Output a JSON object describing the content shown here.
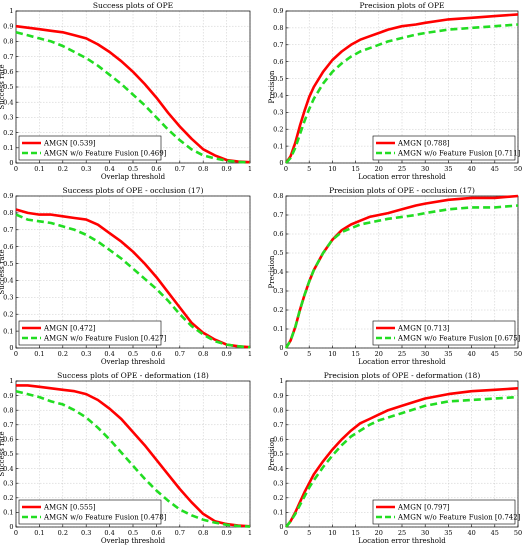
{
  "chart_data": [
    {
      "type": "line",
      "title": "Success plots of OPE",
      "xlabel": "Overlap threshold",
      "ylabel": "Success rate",
      "xlim": [
        0,
        1
      ],
      "ylim": [
        0,
        1
      ],
      "xticks": [
        "0",
        "0.1",
        "0.2",
        "0.3",
        "0.4",
        "0.5",
        "0.6",
        "0.7",
        "0.8",
        "0.9",
        "1"
      ],
      "yticks": [
        "0",
        "0.1",
        "0.2",
        "0.3",
        "0.4",
        "0.5",
        "0.6",
        "0.7",
        "0.8",
        "0.9",
        "1"
      ],
      "grid": true,
      "legend": "bottom-left",
      "series": [
        {
          "name": "AMGN [0.539]",
          "color": "#ff0000",
          "style": "solid",
          "x": [
            0,
            0.05,
            0.1,
            0.15,
            0.2,
            0.25,
            0.3,
            0.35,
            0.4,
            0.45,
            0.5,
            0.55,
            0.6,
            0.65,
            0.7,
            0.75,
            0.8,
            0.85,
            0.9,
            0.95,
            1
          ],
          "y": [
            0.9,
            0.89,
            0.88,
            0.87,
            0.86,
            0.84,
            0.82,
            0.78,
            0.73,
            0.67,
            0.6,
            0.52,
            0.43,
            0.33,
            0.24,
            0.16,
            0.09,
            0.05,
            0.02,
            0.01,
            0.005
          ]
        },
        {
          "name": "AMGN w/o Feature Fusion [0.469]",
          "color": "#22dd22",
          "style": "dashed",
          "x": [
            0,
            0.05,
            0.1,
            0.15,
            0.2,
            0.25,
            0.3,
            0.35,
            0.4,
            0.45,
            0.5,
            0.55,
            0.6,
            0.65,
            0.7,
            0.75,
            0.8,
            0.85,
            0.9,
            0.95,
            1
          ],
          "y": [
            0.86,
            0.84,
            0.82,
            0.8,
            0.77,
            0.73,
            0.69,
            0.64,
            0.58,
            0.52,
            0.45,
            0.38,
            0.3,
            0.22,
            0.15,
            0.09,
            0.05,
            0.03,
            0.015,
            0.007,
            0.003
          ]
        }
      ]
    },
    {
      "type": "line",
      "title": "Precision plots of OPE",
      "xlabel": "Location error threshold",
      "ylabel": "Precision",
      "xlim": [
        0,
        50
      ],
      "ylim": [
        0,
        0.9
      ],
      "xticks": [
        "0",
        "5",
        "10",
        "15",
        "20",
        "25",
        "30",
        "35",
        "40",
        "45",
        "50"
      ],
      "yticks": [
        "0",
        "0.1",
        "0.2",
        "0.3",
        "0.4",
        "0.5",
        "0.6",
        "0.7",
        "0.8",
        "0.9"
      ],
      "grid": true,
      "legend": "bottom-right",
      "series": [
        {
          "name": "AMGN [0.788]",
          "color": "#ff0000",
          "style": "solid",
          "x": [
            0,
            1,
            2,
            3,
            4,
            5,
            6,
            8,
            10,
            12,
            14,
            16,
            18,
            20,
            22,
            25,
            28,
            30,
            35,
            40,
            45,
            50
          ],
          "y": [
            0,
            0.04,
            0.12,
            0.22,
            0.31,
            0.39,
            0.45,
            0.54,
            0.61,
            0.66,
            0.7,
            0.73,
            0.75,
            0.77,
            0.79,
            0.81,
            0.82,
            0.83,
            0.85,
            0.86,
            0.87,
            0.88
          ]
        },
        {
          "name": "AMGN w/o Feature Fusion [0.711]",
          "color": "#22dd22",
          "style": "dashed",
          "x": [
            0,
            1,
            2,
            3,
            4,
            5,
            6,
            8,
            10,
            12,
            14,
            16,
            18,
            20,
            22,
            25,
            28,
            30,
            35,
            40,
            45,
            50
          ],
          "y": [
            0,
            0.03,
            0.09,
            0.17,
            0.25,
            0.32,
            0.38,
            0.47,
            0.54,
            0.59,
            0.63,
            0.66,
            0.68,
            0.7,
            0.72,
            0.74,
            0.76,
            0.77,
            0.79,
            0.8,
            0.81,
            0.82
          ]
        }
      ]
    },
    {
      "type": "line",
      "title": "Success plots of OPE - occlusion (17)",
      "xlabel": "Overlap threshold",
      "ylabel": "Success rate",
      "xlim": [
        0,
        1
      ],
      "ylim": [
        0,
        0.9
      ],
      "xticks": [
        "0",
        "0.1",
        "0.2",
        "0.3",
        "0.4",
        "0.5",
        "0.6",
        "0.7",
        "0.8",
        "0.9",
        "1"
      ],
      "yticks": [
        "0",
        "0.1",
        "0.2",
        "0.3",
        "0.4",
        "0.5",
        "0.6",
        "0.7",
        "0.8",
        "0.9"
      ],
      "grid": true,
      "legend": "bottom-left",
      "series": [
        {
          "name": "AMGN [0.472]",
          "color": "#ff0000",
          "style": "solid",
          "x": [
            0,
            0.05,
            0.1,
            0.15,
            0.2,
            0.25,
            0.3,
            0.35,
            0.4,
            0.45,
            0.5,
            0.55,
            0.6,
            0.65,
            0.7,
            0.75,
            0.8,
            0.85,
            0.9,
            0.95,
            1
          ],
          "y": [
            0.82,
            0.8,
            0.79,
            0.79,
            0.78,
            0.77,
            0.76,
            0.73,
            0.68,
            0.63,
            0.57,
            0.5,
            0.42,
            0.33,
            0.24,
            0.15,
            0.09,
            0.05,
            0.02,
            0.01,
            0.005
          ]
        },
        {
          "name": "AMGN w/o Feature Fusion [0.427]",
          "color": "#22dd22",
          "style": "dashed",
          "x": [
            0,
            0.05,
            0.1,
            0.15,
            0.2,
            0.25,
            0.3,
            0.35,
            0.4,
            0.45,
            0.5,
            0.55,
            0.6,
            0.65,
            0.7,
            0.75,
            0.8,
            0.85,
            0.9,
            0.95,
            1
          ],
          "y": [
            0.79,
            0.76,
            0.75,
            0.74,
            0.72,
            0.7,
            0.67,
            0.63,
            0.58,
            0.53,
            0.47,
            0.41,
            0.35,
            0.28,
            0.2,
            0.13,
            0.08,
            0.04,
            0.02,
            0.01,
            0.004
          ]
        }
      ]
    },
    {
      "type": "line",
      "title": "Precision plots of OPE - occlusion (17)",
      "xlabel": "Location error threshold",
      "ylabel": "Precision",
      "xlim": [
        0,
        50
      ],
      "ylim": [
        0,
        0.8
      ],
      "xticks": [
        "0",
        "5",
        "10",
        "15",
        "20",
        "25",
        "30",
        "35",
        "40",
        "45",
        "50"
      ],
      "yticks": [
        "0",
        "0.1",
        "0.2",
        "0.3",
        "0.4",
        "0.5",
        "0.6",
        "0.7",
        "0.8"
      ],
      "grid": true,
      "legend": "bottom-right",
      "series": [
        {
          "name": "AMGN [0.713]",
          "color": "#ff0000",
          "style": "solid",
          "x": [
            0,
            1,
            2,
            3,
            4,
            5,
            6,
            8,
            10,
            12,
            14,
            16,
            18,
            20,
            22,
            25,
            28,
            30,
            35,
            40,
            45,
            50
          ],
          "y": [
            0,
            0.04,
            0.11,
            0.2,
            0.28,
            0.35,
            0.41,
            0.5,
            0.57,
            0.62,
            0.65,
            0.67,
            0.69,
            0.7,
            0.71,
            0.73,
            0.75,
            0.76,
            0.78,
            0.79,
            0.79,
            0.8
          ]
        },
        {
          "name": "AMGN w/o Feature Fusion [0.675]",
          "color": "#22dd22",
          "style": "dashed",
          "x": [
            0,
            1,
            2,
            3,
            4,
            5,
            6,
            8,
            10,
            12,
            14,
            16,
            18,
            20,
            22,
            25,
            28,
            30,
            35,
            40,
            45,
            50
          ],
          "y": [
            0,
            0.04,
            0.11,
            0.2,
            0.28,
            0.35,
            0.41,
            0.5,
            0.57,
            0.61,
            0.63,
            0.65,
            0.66,
            0.67,
            0.68,
            0.69,
            0.7,
            0.71,
            0.73,
            0.74,
            0.74,
            0.75
          ]
        }
      ]
    },
    {
      "type": "line",
      "title": "Success plots of OPE - deformation (18)",
      "xlabel": "Overlap threshold",
      "ylabel": "Success rate",
      "xlim": [
        0,
        1
      ],
      "ylim": [
        0,
        1
      ],
      "xticks": [
        "0",
        "0.1",
        "0.2",
        "0.3",
        "0.4",
        "0.5",
        "0.6",
        "0.7",
        "0.8",
        "0.9",
        "1"
      ],
      "yticks": [
        "0",
        "0.1",
        "0.2",
        "0.3",
        "0.4",
        "0.5",
        "0.6",
        "0.7",
        "0.8",
        "0.9",
        "1"
      ],
      "grid": true,
      "legend": "bottom-left",
      "series": [
        {
          "name": "AMGN [0.555]",
          "color": "#ff0000",
          "style": "solid",
          "x": [
            0,
            0.05,
            0.1,
            0.15,
            0.2,
            0.25,
            0.3,
            0.35,
            0.4,
            0.45,
            0.5,
            0.55,
            0.6,
            0.65,
            0.7,
            0.75,
            0.8,
            0.85,
            0.9,
            0.95,
            1
          ],
          "y": [
            0.97,
            0.97,
            0.96,
            0.95,
            0.94,
            0.93,
            0.91,
            0.87,
            0.81,
            0.74,
            0.65,
            0.56,
            0.46,
            0.36,
            0.26,
            0.17,
            0.09,
            0.04,
            0.02,
            0.01,
            0.005
          ]
        },
        {
          "name": "AMGN w/o Feature Fusion [0.478]",
          "color": "#22dd22",
          "style": "dashed",
          "x": [
            0,
            0.05,
            0.1,
            0.15,
            0.2,
            0.25,
            0.3,
            0.35,
            0.4,
            0.45,
            0.5,
            0.55,
            0.6,
            0.65,
            0.7,
            0.75,
            0.8,
            0.85,
            0.9,
            0.95,
            1
          ],
          "y": [
            0.93,
            0.91,
            0.89,
            0.86,
            0.84,
            0.8,
            0.75,
            0.68,
            0.6,
            0.51,
            0.42,
            0.33,
            0.25,
            0.18,
            0.12,
            0.08,
            0.05,
            0.03,
            0.015,
            0.007,
            0.003
          ]
        }
      ]
    },
    {
      "type": "line",
      "title": "Precision plots of OPE - deformation (18)",
      "xlabel": "Location error threshold",
      "ylabel": "Precision",
      "xlim": [
        0,
        50
      ],
      "ylim": [
        0,
        1
      ],
      "xticks": [
        "0",
        "5",
        "10",
        "15",
        "20",
        "25",
        "30",
        "35",
        "40",
        "45",
        "50"
      ],
      "yticks": [
        "0",
        "0.1",
        "0.2",
        "0.3",
        "0.4",
        "0.5",
        "0.6",
        "0.7",
        "0.8",
        "0.9",
        "1"
      ],
      "grid": true,
      "legend": "bottom-right",
      "series": [
        {
          "name": "AMGN [0.797]",
          "color": "#ff0000",
          "style": "solid",
          "x": [
            0,
            1,
            2,
            3,
            4,
            5,
            6,
            8,
            10,
            12,
            14,
            16,
            18,
            20,
            22,
            25,
            28,
            30,
            35,
            40,
            45,
            50
          ],
          "y": [
            0,
            0.04,
            0.1,
            0.17,
            0.24,
            0.3,
            0.36,
            0.45,
            0.53,
            0.6,
            0.66,
            0.71,
            0.74,
            0.77,
            0.8,
            0.83,
            0.86,
            0.88,
            0.91,
            0.93,
            0.94,
            0.95
          ]
        },
        {
          "name": "AMGN w/o Feature Fusion [0.742]",
          "color": "#22dd22",
          "style": "dashed",
          "x": [
            0,
            1,
            2,
            3,
            4,
            5,
            6,
            8,
            10,
            12,
            14,
            16,
            18,
            20,
            22,
            25,
            28,
            30,
            35,
            40,
            45,
            50
          ],
          "y": [
            0,
            0.04,
            0.09,
            0.15,
            0.21,
            0.27,
            0.32,
            0.41,
            0.49,
            0.56,
            0.62,
            0.66,
            0.7,
            0.73,
            0.75,
            0.78,
            0.81,
            0.83,
            0.86,
            0.87,
            0.88,
            0.89
          ]
        }
      ]
    }
  ]
}
